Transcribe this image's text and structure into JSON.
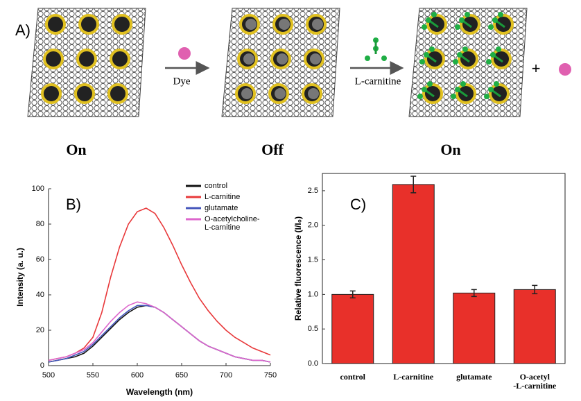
{
  "diagram": {
    "label": "A)",
    "arrow1": "Dye",
    "arrow2": "L-carnitine",
    "states": [
      "On",
      "Off",
      "On"
    ]
  },
  "chart_data": [
    {
      "type": "line",
      "title": "B)",
      "x_label": "Wavelength (nm)",
      "y_label": "Intensity (a. u.)",
      "x": [
        500,
        510,
        520,
        530,
        540,
        550,
        560,
        570,
        580,
        590,
        600,
        610,
        620,
        630,
        640,
        650,
        660,
        670,
        680,
        690,
        700,
        710,
        720,
        730,
        740,
        750
      ],
      "series": [
        {
          "name": "control",
          "color": "#111111",
          "values": [
            2,
            3,
            4,
            5,
            7,
            11,
            16,
            21,
            26,
            30,
            33,
            34,
            33,
            30,
            26,
            22,
            18,
            14,
            11,
            9,
            7,
            5,
            4,
            3,
            3,
            2
          ]
        },
        {
          "name": "L-carnitine",
          "color": "#e8383a",
          "values": [
            3,
            4,
            5,
            7,
            10,
            16,
            30,
            50,
            67,
            80,
            87,
            89,
            86,
            78,
            68,
            57,
            47,
            38,
            31,
            25,
            20,
            16,
            13,
            10,
            8,
            6
          ]
        },
        {
          "name": "glutamate",
          "color": "#4455bb",
          "values": [
            2,
            3,
            4,
            6,
            8,
            12,
            17,
            22,
            27,
            31,
            34,
            34,
            33,
            30,
            26,
            22,
            18,
            14,
            11,
            9,
            7,
            5,
            4,
            3,
            3,
            2
          ]
        },
        {
          "name": "O-acetylcholine-\nL-carnitine",
          "color": "#dd66cc",
          "values": [
            3,
            4,
            5,
            7,
            9,
            13,
            19,
            25,
            30,
            34,
            36,
            35,
            33,
            30,
            26,
            22,
            18,
            14,
            11,
            9,
            7,
            5,
            4,
            3,
            3,
            2
          ]
        }
      ],
      "xlim": [
        500,
        750
      ],
      "xticks": [
        500,
        550,
        600,
        650,
        700,
        750
      ],
      "ylim": [
        0,
        100
      ],
      "yticks": [
        0,
        20,
        40,
        60,
        80,
        100
      ]
    },
    {
      "type": "bar",
      "title": "C)",
      "y_label": "Relative fluorescence (I/I₀)",
      "categories": [
        "control",
        "L-carnitine",
        "glutamate",
        "O-acetyl\n-L-carnitine"
      ],
      "values": [
        1.0,
        2.59,
        1.02,
        1.07
      ],
      "errors": [
        0.05,
        0.12,
        0.05,
        0.06
      ],
      "color": "#e8302a",
      "ylim": [
        0,
        2.75
      ],
      "yticks": [
        {
          "value": 0,
          "label": "0.0"
        },
        0.5,
        {
          "value": 1,
          "label": "1.0"
        },
        1.5,
        {
          "value": 2,
          "label": "2.0"
        },
        2.5
      ]
    }
  ]
}
